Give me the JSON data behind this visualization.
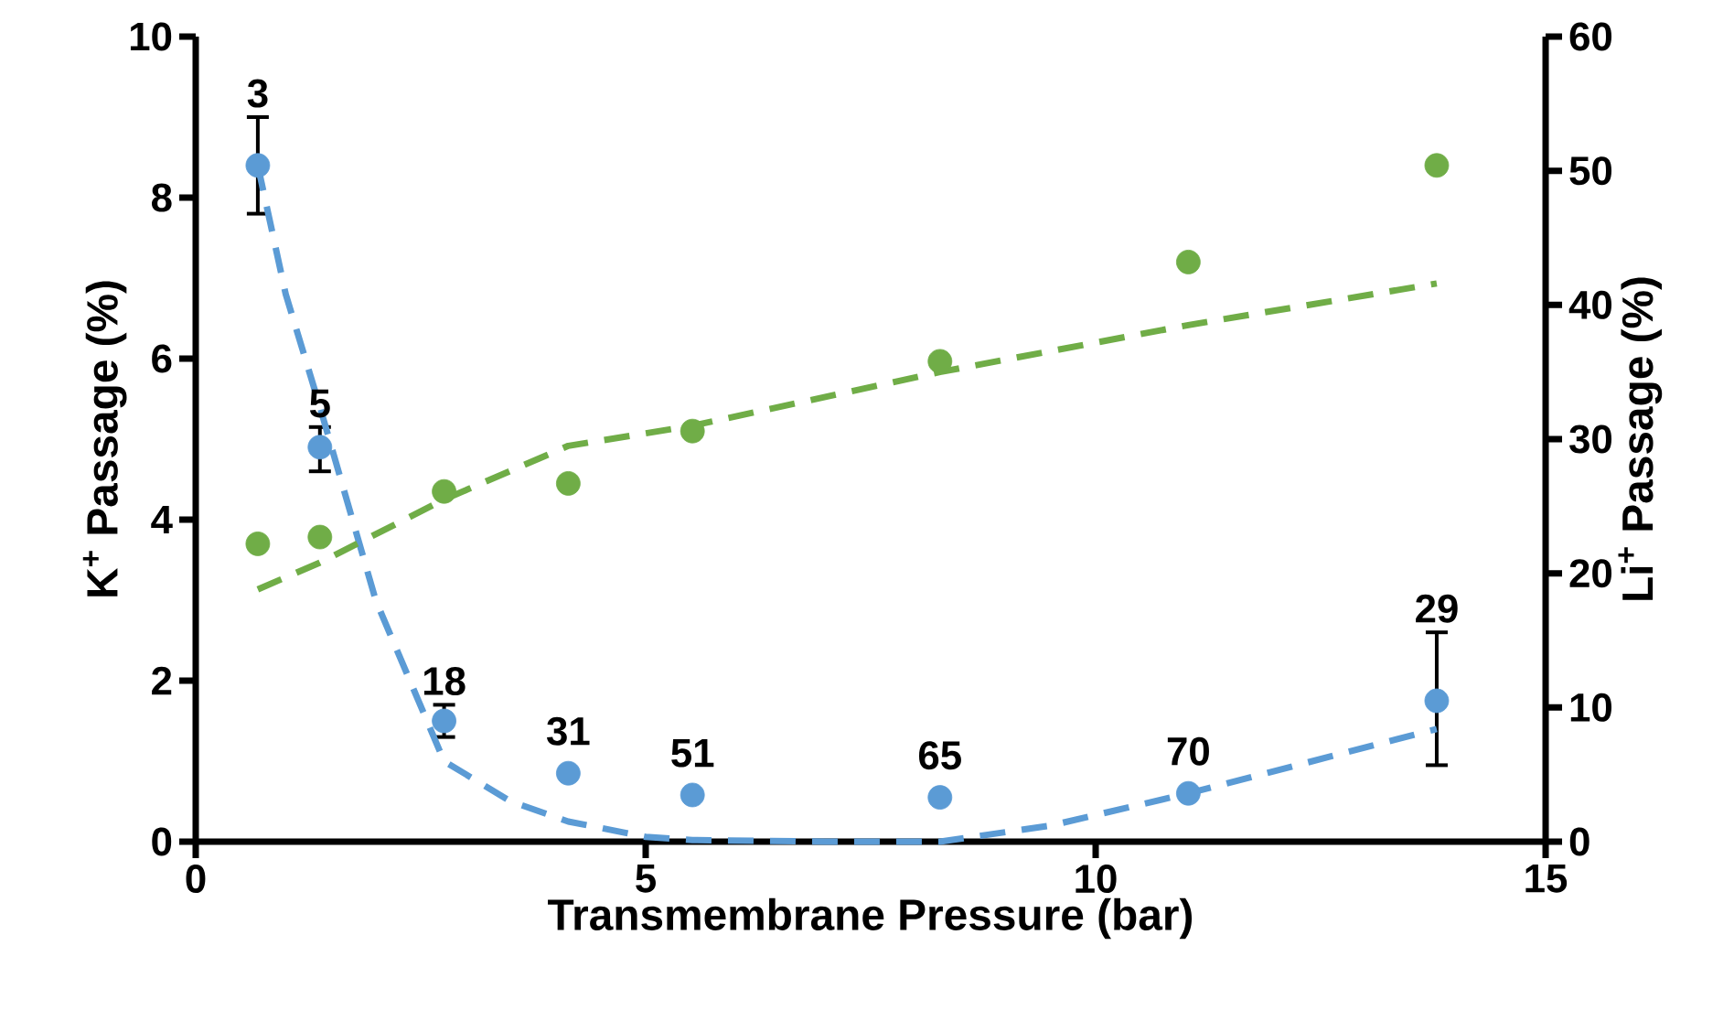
{
  "chart_data": {
    "type": "scatter",
    "xlabel": "Transmembrane Pressure (bar)",
    "ylabel": "K$^{+}$ Passage (%)",
    "y2label": "Li$^{+}$ Passage (%)",
    "xlim": [
      0,
      15
    ],
    "xticks": [
      0,
      5,
      10,
      15
    ],
    "ylim": [
      0,
      10
    ],
    "yticks": [
      0,
      2,
      4,
      6,
      8,
      10
    ],
    "y2lim": [
      0,
      60
    ],
    "y2ticks": [
      0,
      10,
      20,
      30,
      40,
      50,
      60
    ],
    "series": [
      {
        "marker": "circle",
        "color": "#5b9bd5",
        "x": [
          0.69,
          1.38,
          2.76,
          4.14,
          5.52,
          8.27,
          11.03,
          13.79
        ],
        "values": [
          8.4,
          4.9,
          1.5,
          0.85,
          0.58,
          0.55,
          0.6,
          1.75
        ],
        "errors": [
          [
            7.8,
            9.0
          ],
          [
            4.6,
            5.15
          ],
          [
            1.3,
            1.7
          ],
          null,
          null,
          null,
          null,
          [
            0.95,
            2.6
          ]
        ]
      },
      {
        "type": "line",
        "line_style": "dashed",
        "color": "#5b9bd5",
        "x": [
          0.69,
          1.0,
          1.38,
          2.0,
          2.76,
          3.5,
          4.14,
          5.0,
          5.52,
          7.0,
          8.27,
          9.5,
          11.03,
          13.79
        ],
        "values": [
          8.4,
          6.8,
          5.4,
          3.0,
          1.0,
          0.5,
          0.25,
          0.06,
          0.02,
          0,
          0,
          0.2,
          0.6,
          1.4
        ]
      },
      {
        "axis": "y2",
        "marker": "circle",
        "color": "#70ad47",
        "x": [
          0.69,
          1.38,
          2.76,
          4.14,
          5.52,
          8.27,
          11.03,
          13.79
        ],
        "values": [
          22.2,
          22.7,
          26.1,
          26.7,
          30.6,
          35.8,
          43.2,
          50.4
        ]
      },
      {
        "type": "line",
        "axis": "y2",
        "line_style": "dashed",
        "color": "#70ad47",
        "x": [
          0.69,
          1.38,
          2.76,
          4.14,
          5.52,
          8.27,
          11.03,
          13.79
        ],
        "values": [
          18.8,
          20.8,
          25.5,
          29.5,
          31,
          35,
          38.5,
          41.6
        ]
      }
    ],
    "annotations": [
      {
        "text": "3",
        "x": 0.69,
        "y": 8.4
      },
      {
        "text": "5",
        "x": 1.38,
        "y": 4.9
      },
      {
        "text": "18",
        "x": 2.76,
        "y": 1.5
      },
      {
        "text": "31",
        "x": 4.14,
        "y": 0.85
      },
      {
        "text": "51",
        "x": 5.52,
        "y": 0.58
      },
      {
        "text": "65",
        "x": 8.27,
        "y": 0.55
      },
      {
        "text": "70",
        "x": 11.03,
        "y": 0.6
      },
      {
        "text": "29",
        "x": 13.79,
        "y": 1.75
      }
    ]
  }
}
